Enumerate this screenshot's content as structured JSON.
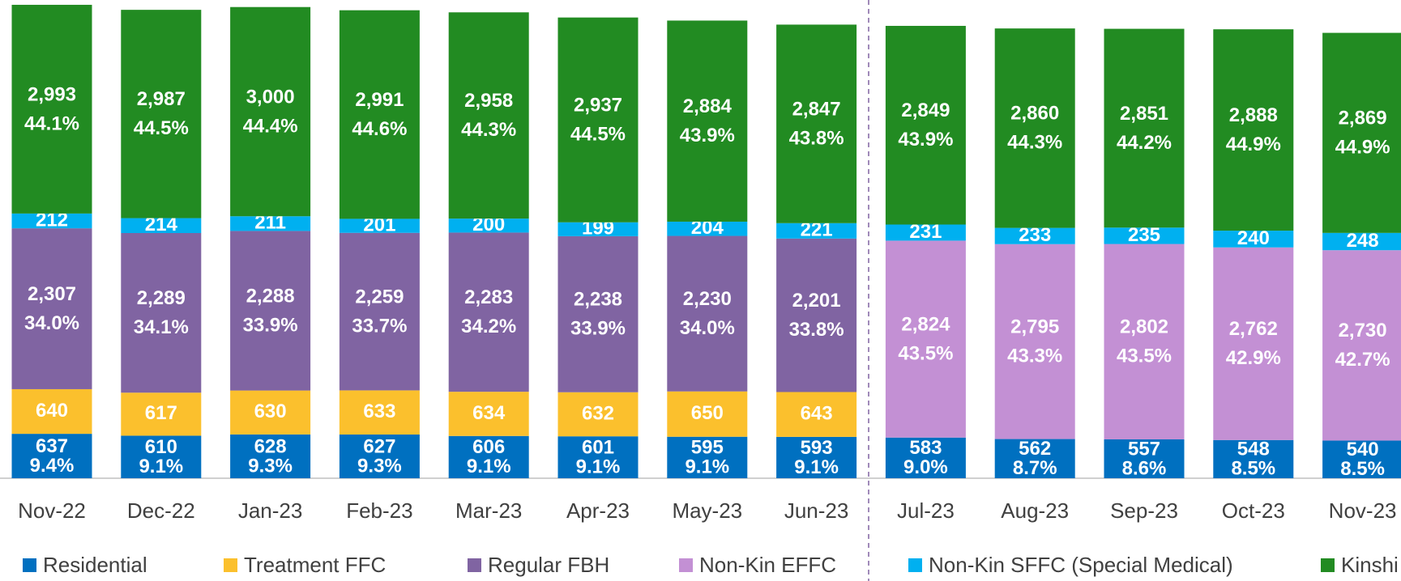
{
  "chart_data": {
    "type": "stacked_bar",
    "categories": [
      "Nov-22",
      "Dec-22",
      "Jan-23",
      "Feb-23",
      "Mar-23",
      "Apr-23",
      "May-23",
      "Jun-23",
      "Jul-23",
      "Aug-23",
      "Sep-23",
      "Oct-23",
      "Nov-23"
    ],
    "ylim": [
      0,
      6800
    ],
    "series": [
      {
        "name": "Residential",
        "color": "#0070c0",
        "values": [
          637,
          610,
          628,
          627,
          606,
          601,
          595,
          593,
          583,
          562,
          557,
          548,
          540
        ],
        "percent_labels": [
          "9.4%",
          "9.1%",
          "9.3%",
          "9.3%",
          "9.1%",
          "9.1%",
          "9.1%",
          "9.1%",
          "9.0%",
          "8.7%",
          "8.6%",
          "8.5%",
          "8.5%"
        ]
      },
      {
        "name": "Treatment FFC",
        "color": "#fbc02d",
        "values": [
          640,
          617,
          630,
          633,
          634,
          632,
          650,
          643,
          null,
          null,
          null,
          null,
          null
        ]
      },
      {
        "name": "Regular FBH",
        "color": "#8064a2",
        "values": [
          2307,
          2289,
          2288,
          2259,
          2283,
          2238,
          2230,
          2201,
          null,
          null,
          null,
          null,
          null
        ],
        "value_labels": [
          "2,307",
          "2,289",
          "2,288",
          "2,259",
          "2,283",
          "2,238",
          "2,230",
          "2,201",
          null,
          null,
          null,
          null,
          null
        ],
        "percent_labels": [
          "34.0%",
          "34.1%",
          "33.9%",
          "33.7%",
          "34.2%",
          "33.9%",
          "34.0%",
          "33.8%",
          null,
          null,
          null,
          null,
          null
        ]
      },
      {
        "name": "Non-Kin EFFC",
        "color": "#c390d4",
        "values": [
          null,
          null,
          null,
          null,
          null,
          null,
          null,
          null,
          2824,
          2795,
          2802,
          2762,
          2730
        ],
        "value_labels": [
          null,
          null,
          null,
          null,
          null,
          null,
          null,
          null,
          "2,824",
          "2,795",
          "2,802",
          "2,762",
          "2,730"
        ],
        "percent_labels": [
          null,
          null,
          null,
          null,
          null,
          null,
          null,
          null,
          "43.5%",
          "43.3%",
          "43.5%",
          "42.9%",
          "42.7%"
        ]
      },
      {
        "name": "Non-Kin SFFC (Special Medical)",
        "color": "#00b0f0",
        "values": [
          212,
          214,
          211,
          201,
          200,
          199,
          204,
          221,
          231,
          233,
          235,
          240,
          248
        ]
      },
      {
        "name": "Kinshi",
        "color": "#228b22",
        "values": [
          2993,
          2987,
          3000,
          2991,
          2958,
          2937,
          2884,
          2847,
          2849,
          2860,
          2851,
          2888,
          2869
        ],
        "value_labels": [
          "2,993",
          "2,987",
          "3,000",
          "2,991",
          "2,958",
          "2,937",
          "2,884",
          "2,847",
          "2,849",
          "2,860",
          "2,851",
          "2,888",
          "2,869"
        ],
        "percent_labels": [
          "44.1%",
          "44.5%",
          "44.4%",
          "44.6%",
          "44.3%",
          "44.5%",
          "43.9%",
          "43.8%",
          "43.9%",
          "44.3%",
          "44.2%",
          "44.9%",
          "44.9%"
        ]
      }
    ]
  }
}
